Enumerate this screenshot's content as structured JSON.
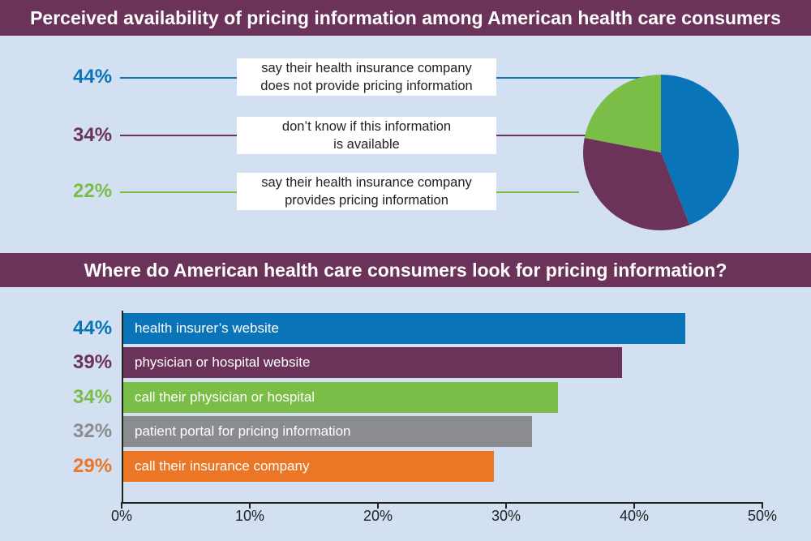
{
  "colors": {
    "blue": "#0a74b9",
    "purple": "#6b3359",
    "green": "#7abe47",
    "gray": "#8b8c8f",
    "orange": "#ea7626"
  },
  "chart_data": [
    {
      "type": "pie",
      "title": "Perceived availability of pricing information among American health care consumers",
      "slices": [
        {
          "label_lines": [
            "say their health insurance company",
            "does not provide pricing information"
          ],
          "value": 44,
          "value_label": "44%",
          "color": "#0a74b9"
        },
        {
          "label_lines": [
            "don’t know if this information",
            "is available"
          ],
          "value": 34,
          "value_label": "34%",
          "color": "#6b3359"
        },
        {
          "label_lines": [
            "say their health insurance company",
            "provides pricing information"
          ],
          "value": 22,
          "value_label": "22%",
          "color": "#7abe47"
        }
      ]
    },
    {
      "type": "bar",
      "orientation": "horizontal",
      "title": "Where do American health care consumers look for pricing information?",
      "xlim": [
        0,
        50
      ],
      "ticks": [
        "0%",
        "10%",
        "20%",
        "30%",
        "40%",
        "50%"
      ],
      "bars": [
        {
          "label": "health insurer’s website",
          "value": 44,
          "value_label": "44%",
          "color": "#0a74b9"
        },
        {
          "label": "physician or hospital website",
          "value": 39,
          "value_label": "39%",
          "color": "#6b3359"
        },
        {
          "label": "call their physician or hospital",
          "value": 34,
          "value_label": "34%",
          "color": "#7abe47"
        },
        {
          "label": "patient portal for pricing information",
          "value": 32,
          "value_label": "32%",
          "color": "#8b8c8f"
        },
        {
          "label": "call their insurance company",
          "value": 29,
          "value_label": "29%",
          "color": "#ea7626"
        }
      ]
    }
  ]
}
